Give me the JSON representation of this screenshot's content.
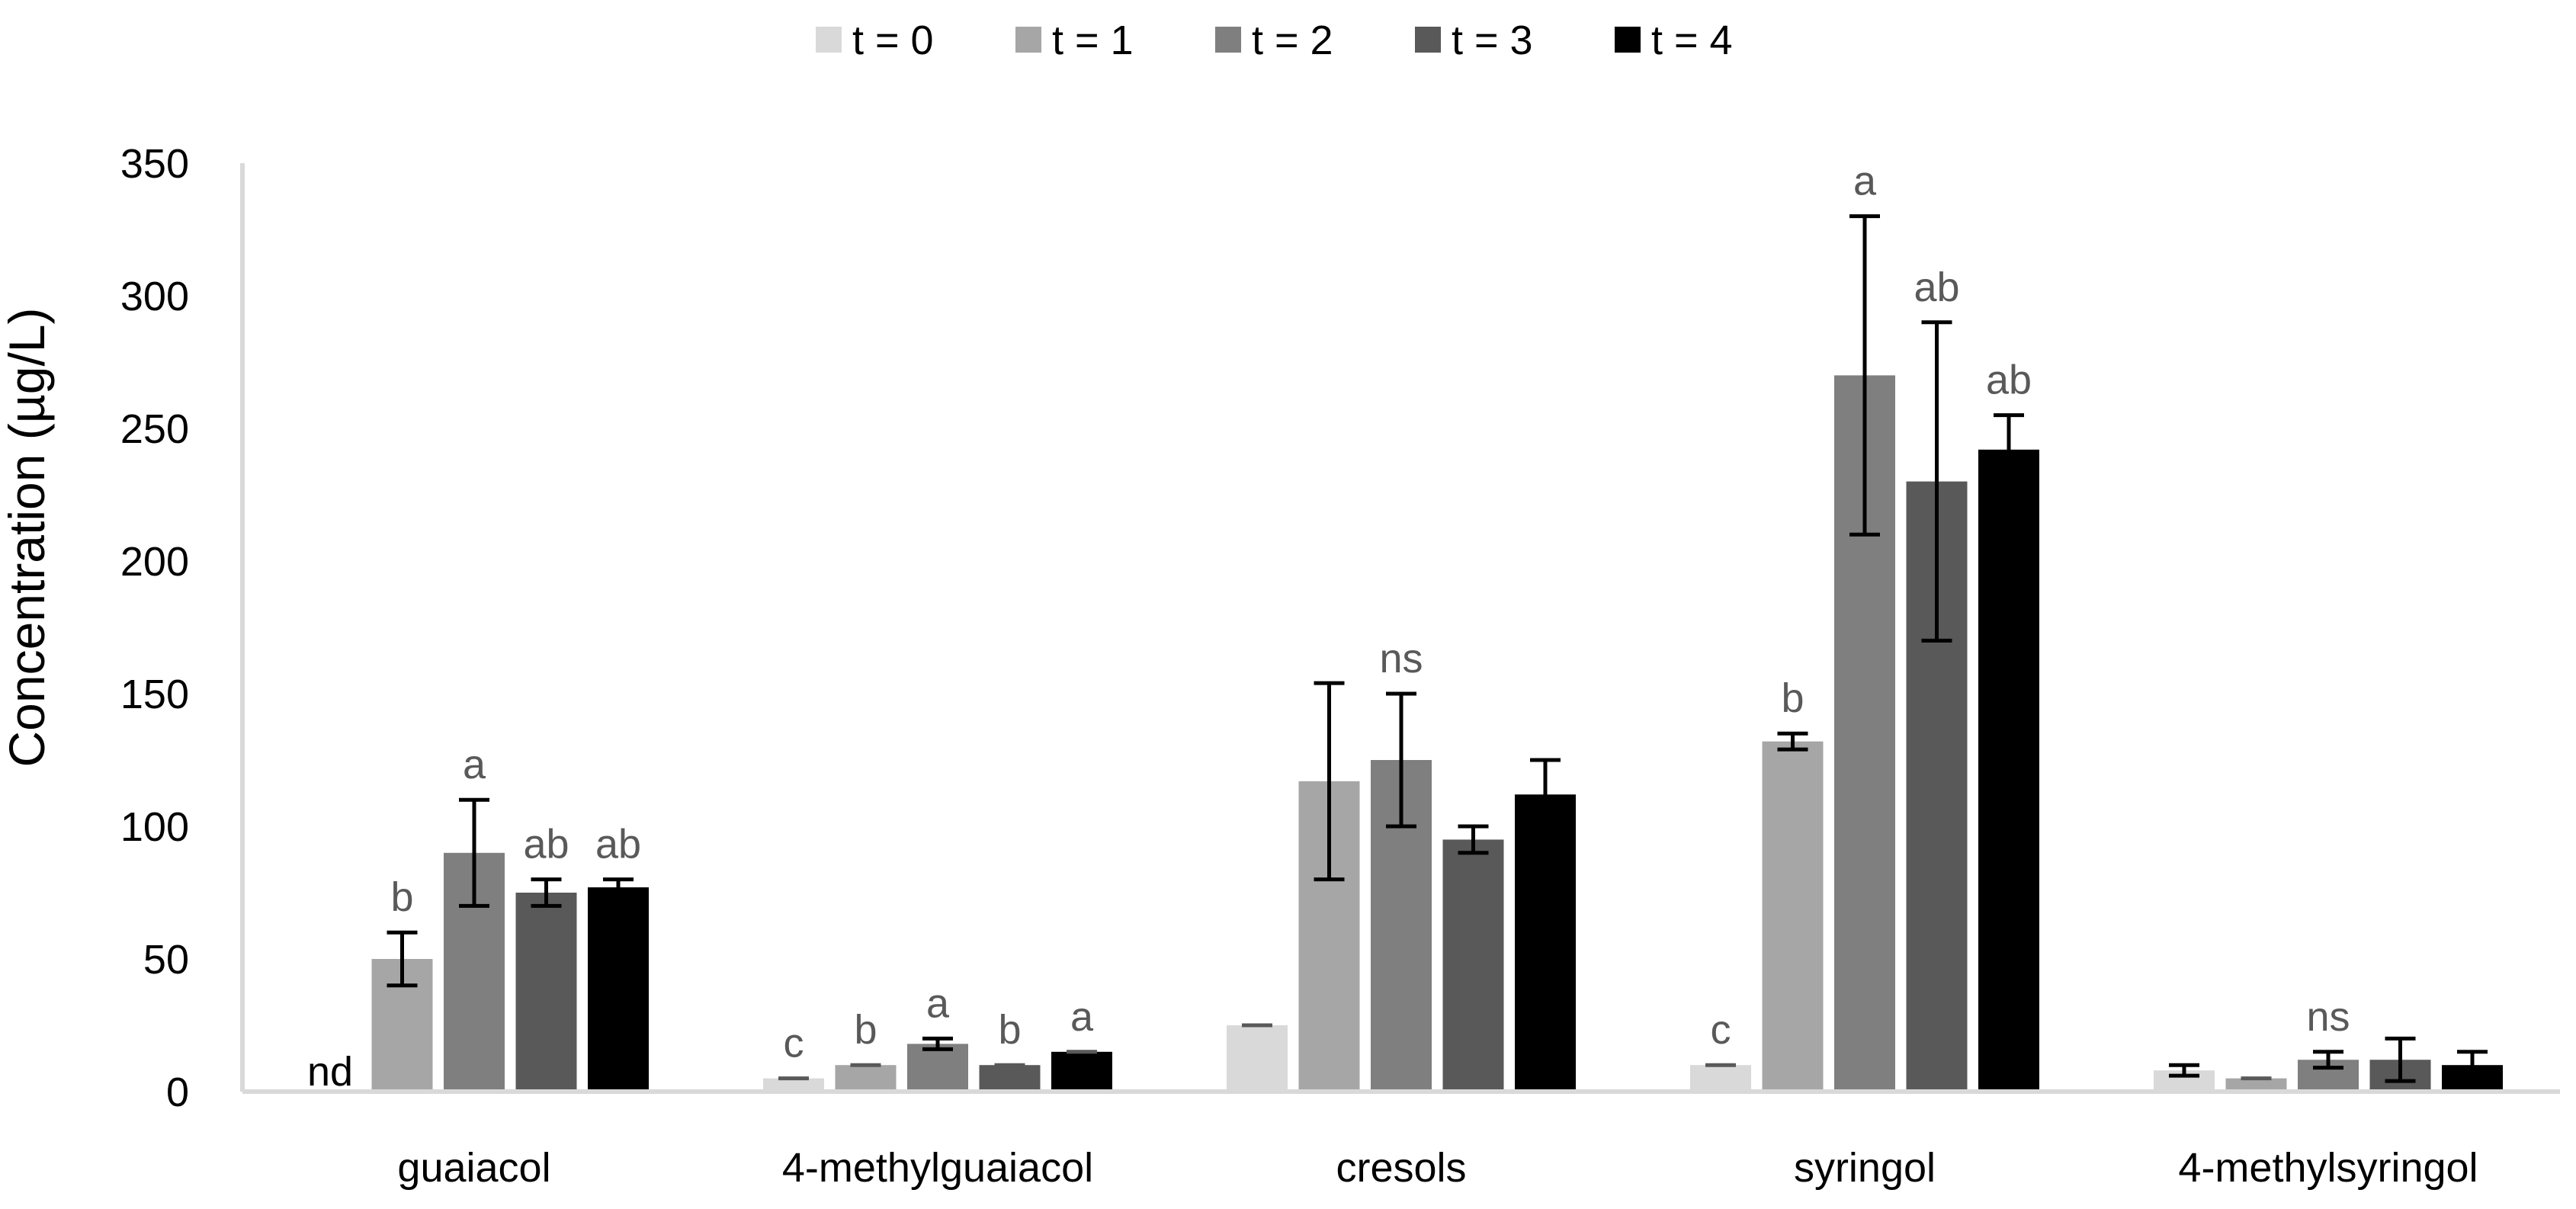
{
  "chart_data": {
    "type": "bar",
    "title": "",
    "xlabel": "",
    "ylabel": "Concentration (µg/L)",
    "ylim": [
      0,
      350
    ],
    "yticks": [
      0,
      50,
      100,
      150,
      200,
      250,
      300,
      350
    ],
    "grid": false,
    "legend_position": "top",
    "categories": [
      "guaiacol",
      "4-methylguaiacol",
      "cresols",
      "syringol",
      "4-methylsyringol"
    ],
    "series": [
      {
        "name": "t = 0",
        "color": "#d9d9d9",
        "values": [
          0,
          5,
          25,
          10,
          8
        ],
        "errors": [
          0,
          0,
          0,
          0,
          2
        ]
      },
      {
        "name": "t = 1",
        "color": "#a6a6a6",
        "values": [
          50,
          10,
          117,
          132,
          5
        ],
        "errors": [
          10,
          0,
          37,
          3,
          0
        ]
      },
      {
        "name": "t = 2",
        "color": "#7f7f7f",
        "values": [
          90,
          18,
          125,
          270,
          12
        ],
        "errors": [
          20,
          2,
          25,
          60,
          3
        ]
      },
      {
        "name": "t = 3",
        "color": "#595959",
        "values": [
          75,
          10,
          95,
          230,
          12
        ],
        "errors": [
          5,
          0,
          5,
          60,
          8
        ]
      },
      {
        "name": "t = 4",
        "color": "#000000",
        "values": [
          77,
          15,
          112,
          242,
          10
        ],
        "errors": [
          3,
          0,
          13,
          13,
          5
        ]
      }
    ],
    "bar_labels": [
      {
        "category": 0,
        "series": 0,
        "text": "nd"
      }
    ],
    "annotations": [
      {
        "category": 0,
        "series": 1,
        "text": "b"
      },
      {
        "category": 0,
        "series": 2,
        "text": "a"
      },
      {
        "category": 0,
        "series": 3,
        "text": "ab"
      },
      {
        "category": 0,
        "series": 4,
        "text": "ab"
      },
      {
        "category": 1,
        "series": 0,
        "text": "c"
      },
      {
        "category": 1,
        "series": 1,
        "text": "b"
      },
      {
        "category": 1,
        "series": 2,
        "text": "a"
      },
      {
        "category": 1,
        "series": 3,
        "text": "b"
      },
      {
        "category": 1,
        "series": 4,
        "text": "a"
      },
      {
        "category": 2,
        "series": 2,
        "text": "ns"
      },
      {
        "category": 3,
        "series": 0,
        "text": "c"
      },
      {
        "category": 3,
        "series": 1,
        "text": "b"
      },
      {
        "category": 3,
        "series": 2,
        "text": "a"
      },
      {
        "category": 3,
        "series": 3,
        "text": "ab"
      },
      {
        "category": 3,
        "series": 4,
        "text": "ab"
      },
      {
        "category": 4,
        "series": 2,
        "text": "ns"
      }
    ]
  }
}
